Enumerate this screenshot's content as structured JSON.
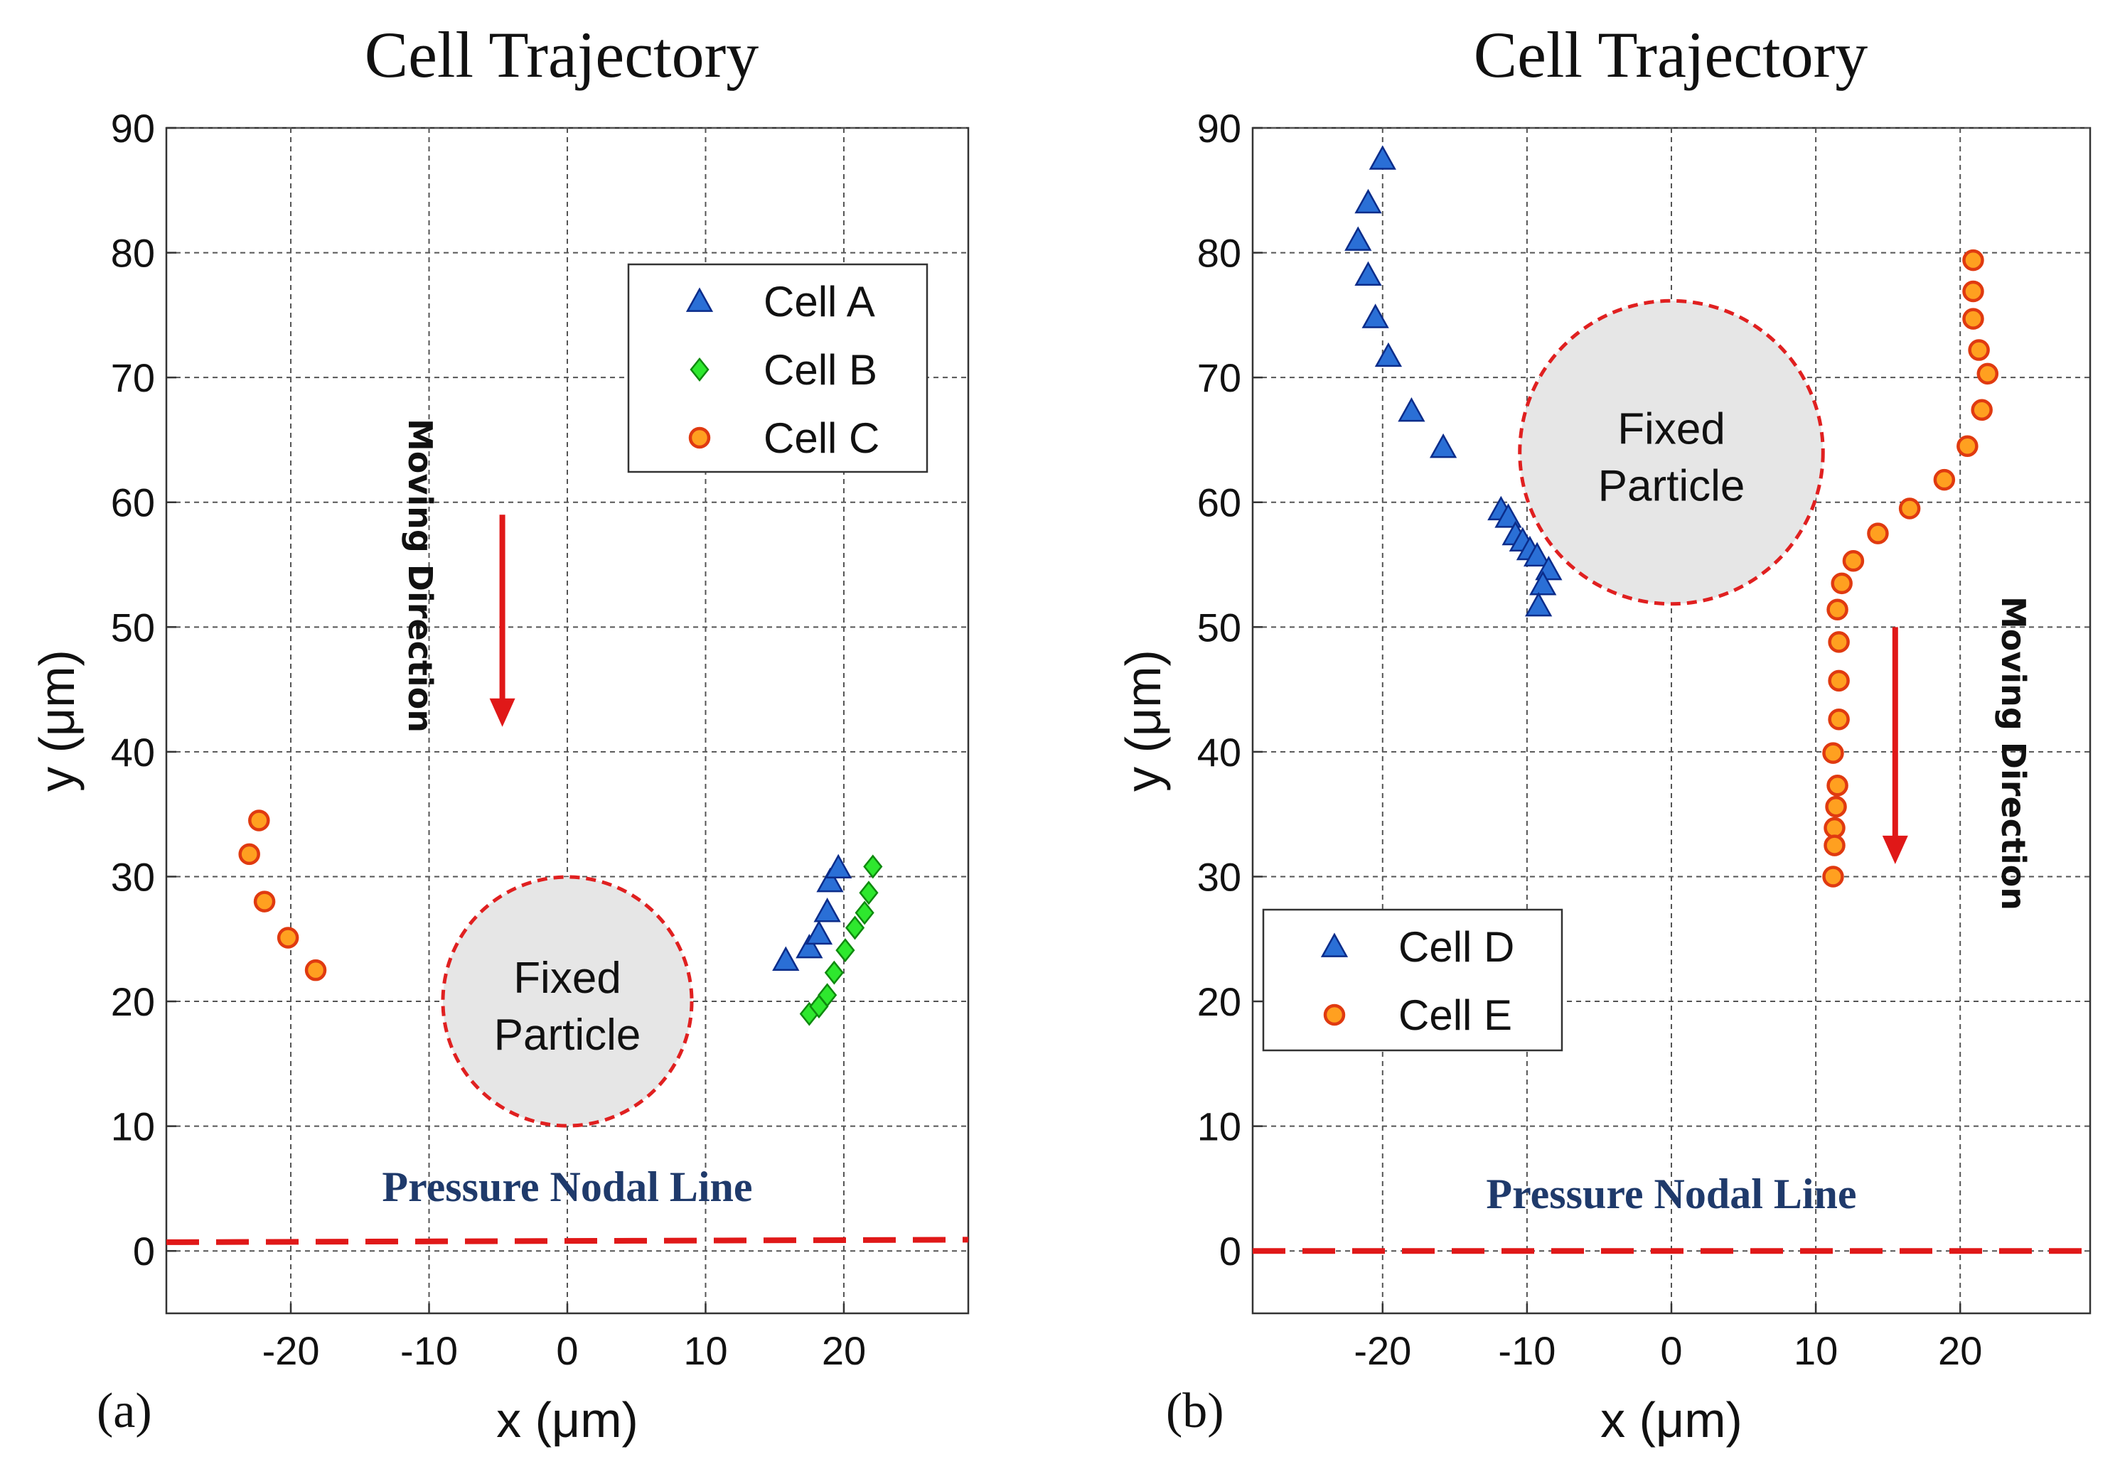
{
  "chart_data": [
    {
      "type": "scatter",
      "panel_label": "(a)",
      "title": "Cell Trajectory",
      "xlabel": "x (μm)",
      "ylabel": "y (μm)",
      "xlim": [
        -29,
        29
      ],
      "ylim": [
        -5,
        90
      ],
      "xticks": [
        -20,
        -10,
        0,
        10,
        20
      ],
      "yticks": [
        0,
        10,
        20,
        30,
        40,
        50,
        60,
        70,
        80,
        90
      ],
      "grid": true,
      "legend_position": "top-right",
      "series": [
        {
          "name": "Cell A",
          "marker": "triangle",
          "color": "#2a6fd6",
          "edge": "#0b2c8a",
          "points": [
            [
              15.8,
              23.3
            ],
            [
              17.5,
              24.3
            ],
            [
              18.2,
              25.4
            ],
            [
              18.8,
              27.2
            ],
            [
              19.0,
              29.6
            ],
            [
              19.6,
              30.7
            ]
          ]
        },
        {
          "name": "Cell B",
          "marker": "diamond",
          "color": "#2ee82e",
          "edge": "#0f8a0f",
          "points": [
            [
              17.5,
              19.0
            ],
            [
              18.2,
              19.6
            ],
            [
              18.8,
              20.5
            ],
            [
              19.3,
              22.3
            ],
            [
              20.1,
              24.1
            ],
            [
              20.8,
              25.9
            ],
            [
              21.5,
              27.1
            ],
            [
              21.8,
              28.7
            ],
            [
              22.1,
              30.8
            ]
          ]
        },
        {
          "name": "Cell C",
          "marker": "circle",
          "color": "#ffa020",
          "edge": "#e03a10",
          "points": [
            [
              -22.3,
              34.5
            ],
            [
              -23.0,
              31.8
            ],
            [
              -21.9,
              28.0
            ],
            [
              -20.2,
              25.1
            ],
            [
              -18.2,
              22.5
            ]
          ]
        }
      ],
      "fixed_particle": {
        "label_line1": "Fixed",
        "label_line2": "Particle",
        "center": [
          0,
          20
        ],
        "radius": 9
      },
      "annotation_moving": "Moving Direction",
      "arrow_data": {
        "x": -4.7,
        "y_start": 59,
        "y_end": 42
      },
      "nodal_line": {
        "label": "Pressure Nodal Line",
        "y_left": 0.7,
        "y_right": 0.9
      }
    },
    {
      "type": "scatter",
      "panel_label": "(b)",
      "title": "Cell Trajectory",
      "xlabel": "x (μm)",
      "ylabel": "y (μm)",
      "xlim": [
        -29,
        29
      ],
      "ylim": [
        -5,
        90
      ],
      "xticks": [
        -20,
        -10,
        0,
        10,
        20
      ],
      "yticks": [
        0,
        10,
        20,
        30,
        40,
        50,
        60,
        70,
        80,
        90
      ],
      "grid": true,
      "legend_position": "bottom-left",
      "series": [
        {
          "name": "Cell D",
          "marker": "triangle",
          "color": "#2a6fd6",
          "edge": "#0b2c8a",
          "points": [
            [
              -20.0,
              87.5
            ],
            [
              -21.0,
              84.0
            ],
            [
              -21.7,
              81.0
            ],
            [
              -21.0,
              78.2
            ],
            [
              -20.5,
              74.8
            ],
            [
              -19.6,
              71.7
            ],
            [
              -18.0,
              67.3
            ],
            [
              -15.8,
              64.4
            ],
            [
              -11.8,
              59.4
            ],
            [
              -11.3,
              58.8
            ],
            [
              -10.8,
              57.4
            ],
            [
              -10.3,
              56.9
            ],
            [
              -9.8,
              56.2
            ],
            [
              -9.3,
              55.7
            ],
            [
              -8.5,
              54.6
            ],
            [
              -8.9,
              53.4
            ],
            [
              -9.2,
              51.7
            ]
          ]
        },
        {
          "name": "Cell E",
          "marker": "circle",
          "color": "#ffa020",
          "edge": "#e03a10",
          "points": [
            [
              20.9,
              79.4
            ],
            [
              20.9,
              76.9
            ],
            [
              20.9,
              74.7
            ],
            [
              21.3,
              72.2
            ],
            [
              21.9,
              70.3
            ],
            [
              21.5,
              67.4
            ],
            [
              20.5,
              64.5
            ],
            [
              18.9,
              61.8
            ],
            [
              16.5,
              59.5
            ],
            [
              14.3,
              57.5
            ],
            [
              12.6,
              55.3
            ],
            [
              11.8,
              53.5
            ],
            [
              11.5,
              51.4
            ],
            [
              11.6,
              48.8
            ],
            [
              11.6,
              45.7
            ],
            [
              11.6,
              42.6
            ],
            [
              11.2,
              39.9
            ],
            [
              11.5,
              37.3
            ],
            [
              11.4,
              35.6
            ],
            [
              11.3,
              33.9
            ],
            [
              11.3,
              32.5
            ],
            [
              11.2,
              30.0
            ]
          ]
        }
      ],
      "fixed_particle": {
        "label_line1": "Fixed",
        "label_line2": "Particle",
        "center": [
          0,
          64
        ],
        "radius": 10.5
      },
      "annotation_moving": "Moving Direction",
      "arrow_data": {
        "x": 15.5,
        "y_start": 50,
        "y_end": 31
      },
      "nodal_line": {
        "label": "Pressure Nodal Line",
        "y_left": 0,
        "y_right": 0
      }
    }
  ]
}
